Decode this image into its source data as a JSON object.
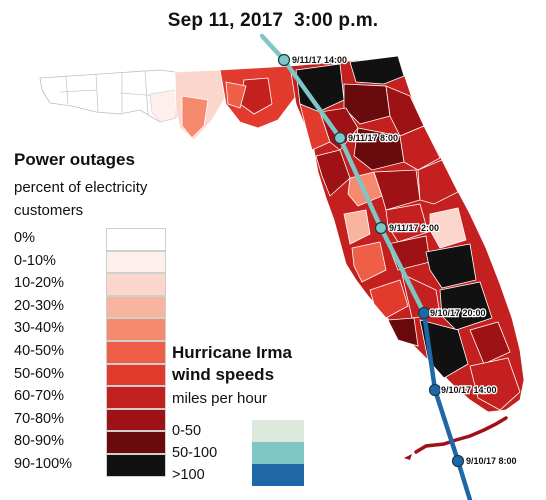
{
  "title": "Sep 11, 2017  3:00 p.m.",
  "power_outages": {
    "title": "Power outages",
    "subtitle": "percent of electricity customers",
    "legend": [
      {
        "label": "0%",
        "color": "#ffffff"
      },
      {
        "label": "0-10%",
        "color": "#fdf0ec"
      },
      {
        "label": "10-20%",
        "color": "#fbd6cc"
      },
      {
        "label": "20-30%",
        "color": "#f9b4a0"
      },
      {
        "label": "30-40%",
        "color": "#f58a6e"
      },
      {
        "label": "40-50%",
        "color": "#ef5f47"
      },
      {
        "label": "50-60%",
        "color": "#e23a2c"
      },
      {
        "label": "60-70%",
        "color": "#c4201f"
      },
      {
        "label": "70-80%",
        "color": "#9e1215"
      },
      {
        "label": "80-90%",
        "color": "#690a0c"
      },
      {
        "label": "90-100%",
        "color": "#111111"
      }
    ]
  },
  "hurricane": {
    "title": "Hurricane Irma wind speeds",
    "units": "miles per hour",
    "legend": [
      {
        "label": "0-50",
        "color": "#dde8dd"
      },
      {
        "label": "50-100",
        "color": "#7fc6c6"
      },
      {
        "label": ">100",
        "color": "#1f68a8"
      }
    ]
  },
  "track_points": [
    {
      "label": "9/11/17 14:00"
    },
    {
      "label": "9/11/17 8:00"
    },
    {
      "label": "9/11/17 2:00"
    },
    {
      "label": "9/10/17 20:00"
    },
    {
      "label": "9/10/17 14:00"
    },
    {
      "label": "9/10/17 8:00"
    }
  ]
}
